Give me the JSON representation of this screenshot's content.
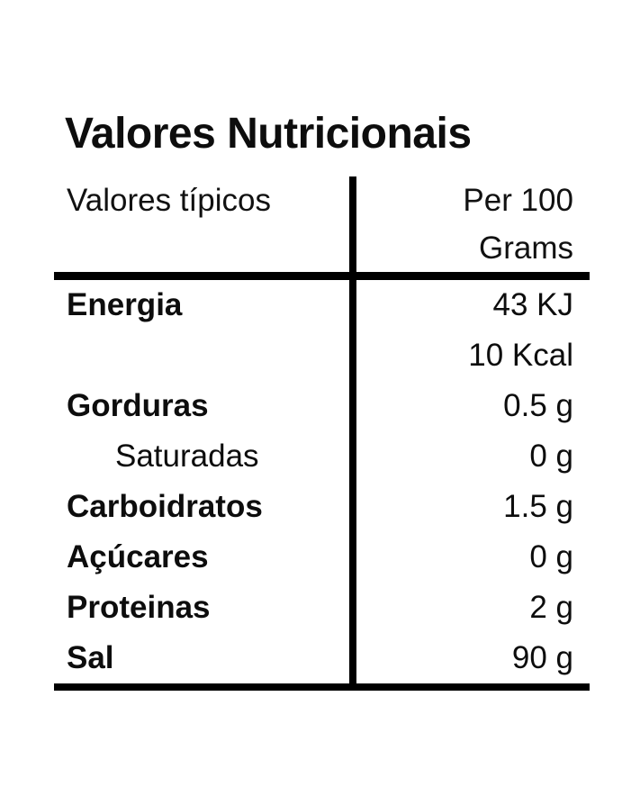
{
  "title": "Valores Nutricionais",
  "colors": {
    "background": "#ffffff",
    "text": "#0d0d0d",
    "rule": "#000000"
  },
  "table": {
    "header": {
      "left": "Valores típicos",
      "right_line1": "Per 100",
      "right_line2": "Grams"
    },
    "rows": [
      {
        "label": "Energia",
        "value": "43 KJ"
      },
      {
        "label": "",
        "value": "10 Kcal"
      },
      {
        "label": "Gorduras",
        "value": "0.5 g"
      },
      {
        "label": "Saturadas",
        "value": "0 g"
      },
      {
        "label": "Carboidratos",
        "value": "1.5 g"
      },
      {
        "label": "Açúcares",
        "value": "0 g"
      },
      {
        "label": "Proteinas",
        "value": "2 g"
      },
      {
        "label": "Sal",
        "value": "90 g"
      }
    ]
  }
}
